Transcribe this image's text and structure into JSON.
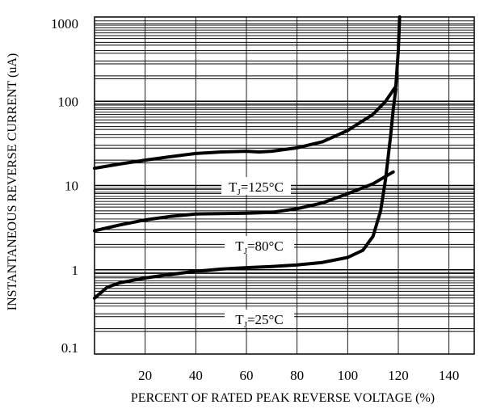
{
  "chart_data": {
    "type": "line",
    "title": "",
    "xlabel": "PERCENT OF RATED PEAK REVERSE VOLTAGE (%)",
    "ylabel": "INSTANTANEOUS REVERSE CURRENT (uA)",
    "x_scale": "linear",
    "y_scale": "log",
    "xlim": [
      0,
      150
    ],
    "ylim": [
      0.1,
      1000
    ],
    "x_ticks": [
      {
        "value": 20,
        "label": "20"
      },
      {
        "value": 40,
        "label": "40"
      },
      {
        "value": 60,
        "label": "60"
      },
      {
        "value": 80,
        "label": "80"
      },
      {
        "value": 100,
        "label": "100"
      },
      {
        "value": 120,
        "label": "120"
      },
      {
        "value": 140,
        "label": "140"
      }
    ],
    "y_ticks": [
      {
        "value": 1000,
        "label": "1000"
      },
      {
        "value": 100,
        "label": "100"
      },
      {
        "value": 10,
        "label": "10"
      },
      {
        "value": 1,
        "label": "1"
      },
      {
        "value": 0.1,
        "label": "0.1"
      }
    ],
    "grid": {
      "horizontal": true,
      "vertical": true
    },
    "legend": "none",
    "series": [
      {
        "name": "TJ=125°C",
        "label": {
          "main": "T",
          "sub": "J",
          "rest": "=125°C"
        },
        "x": [
          0,
          10,
          20,
          30,
          40,
          50,
          60,
          65,
          70,
          80,
          90,
          100,
          110,
          115,
          119,
          120,
          120.5
        ],
        "y": [
          16,
          18,
          20,
          22,
          24,
          25,
          25.5,
          25,
          25.5,
          28,
          33,
          45,
          70,
          100,
          150,
          400,
          1000
        ]
      },
      {
        "name": "TJ=80°C",
        "label": {
          "main": "T",
          "sub": "J",
          "rest": "=80°C"
        },
        "x": [
          0,
          10,
          20,
          30,
          40,
          50,
          60,
          70,
          80,
          90,
          100,
          110,
          118
        ],
        "y": [
          2.9,
          3.4,
          3.9,
          4.3,
          4.6,
          4.65,
          4.7,
          4.8,
          5.3,
          6.2,
          8.0,
          10.5,
          14.5
        ]
      },
      {
        "name": "TJ=25°C",
        "label": {
          "main": "T",
          "sub": "J",
          "rest": "=25°C"
        },
        "x": [
          0,
          5,
          10,
          20,
          30,
          40,
          50,
          60,
          70,
          80,
          90,
          100,
          106,
          110,
          113,
          115,
          117,
          118,
          119
        ],
        "y": [
          0.46,
          0.62,
          0.7,
          0.8,
          0.88,
          0.96,
          1.02,
          1.06,
          1.09,
          1.14,
          1.22,
          1.4,
          1.7,
          2.5,
          5,
          12,
          40,
          80,
          140
        ]
      }
    ]
  }
}
